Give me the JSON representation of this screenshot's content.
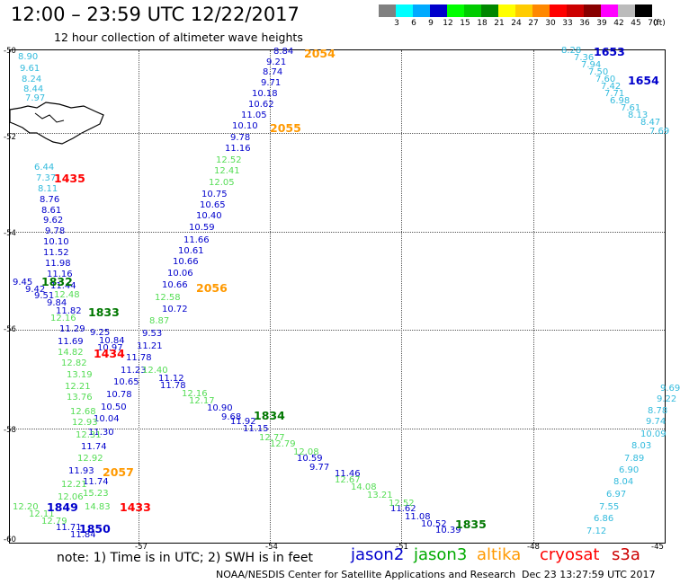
{
  "header": {
    "title": "12:00 – 23:59 UTC 12/22/2017",
    "subtitle": "12 hour collection of altimeter wave heights"
  },
  "scale": {
    "colors": [
      "#808080",
      "#00ffff",
      "#00aaff",
      "#0000cc",
      "#00ff00",
      "#00cc00",
      "#008800",
      "#ffff00",
      "#ffcc00",
      "#ff8800",
      "#ff0000",
      "#cc0000",
      "#880000",
      "#ff00ff",
      "#bbbbbb",
      "#000000"
    ],
    "labels": [
      "3",
      "6",
      "9",
      "12",
      "15",
      "18",
      "21",
      "24",
      "27",
      "30",
      "33",
      "36",
      "39",
      "42",
      "45",
      "70"
    ],
    "unit": "(ft)"
  },
  "axes": {
    "lat_labels": [
      "-50",
      "-52",
      "-54",
      "-56",
      "-58",
      "-60"
    ],
    "lon_labels": [
      "-57",
      "-54",
      "-51",
      "-48",
      "-45"
    ]
  },
  "satellites": {
    "jason2": {
      "name": "jason2",
      "color": "#0000cc"
    },
    "jason3": {
      "name": "jason3",
      "color": "#00aa00"
    },
    "altika": {
      "name": "altika",
      "color": "#ff9900"
    },
    "cryosat": {
      "name": "cryosat",
      "color": "#ff0000"
    },
    "s3a": {
      "name": "s3a",
      "color": "#cc0000"
    }
  },
  "time_labels": [
    {
      "text": "2054",
      "sat": "altika"
    },
    {
      "text": "2055",
      "sat": "altika"
    },
    {
      "text": "2056",
      "sat": "altika"
    },
    {
      "text": "2057",
      "sat": "altika"
    },
    {
      "text": "1435",
      "sat": "cryosat"
    },
    {
      "text": "1434",
      "sat": "cryosat"
    },
    {
      "text": "1433",
      "sat": "cryosat"
    },
    {
      "text": "1832",
      "sat": "jason3"
    },
    {
      "text": "1833",
      "sat": "jason3"
    },
    {
      "text": "1834",
      "sat": "jason3"
    },
    {
      "text": "1835",
      "sat": "jason3"
    },
    {
      "text": "1849",
      "sat": "jason2"
    },
    {
      "text": "1850",
      "sat": "jason2"
    },
    {
      "text": "1653",
      "sat": "jason2"
    },
    {
      "text": "1654",
      "sat": "jason2"
    }
  ],
  "tracks": {
    "west": [
      "8.90",
      "9.61",
      "8.24",
      "8.44",
      "7.97",
      "6.44",
      "7.37",
      "8.11",
      "8.76",
      "8.61",
      "9.62",
      "9.78",
      "10.10",
      "11.52",
      "11.98",
      "11.16",
      "9.45",
      "9.42",
      "9.51",
      "9.84",
      "11.44",
      "11.82",
      "11.29",
      "11.69",
      "10.84",
      "9.25",
      "10.97",
      "11.21",
      "11.78",
      "11.23",
      "10.65",
      "10.78",
      "10.50",
      "10.04",
      "11.30",
      "11.74",
      "11.93",
      "11.74",
      "11.71",
      "11.84"
    ],
    "west_green": [
      "12.48",
      "12.16",
      "14.82",
      "12.82",
      "13.19",
      "12.21",
      "13.76",
      "12.68",
      "12.93",
      "12.31",
      "12.92",
      "12.21",
      "12.06",
      "15.23",
      "14.83",
      "12.20",
      "12.11",
      "12.79"
    ],
    "altika": [
      "8.84",
      "9.21",
      "8.74",
      "9.71",
      "10.18",
      "10.62",
      "11.05",
      "10.10",
      "9.78",
      "11.16",
      "11.66",
      "10.61",
      "10.66",
      "10.06",
      "10.66",
      "10.72",
      "9.53",
      "10.75",
      "10.65",
      "10.40",
      "10.59"
    ],
    "altika_green": [
      "12.52",
      "12.41",
      "12.05",
      "12.58",
      "8.87"
    ],
    "diag": [
      "11.12",
      "11.78",
      "10.90",
      "9.68",
      "11.92",
      "11.15",
      "10.59",
      "9.77",
      "11.46",
      "11.62",
      "11.08",
      "10.52",
      "10.39"
    ],
    "diag_green": [
      "12.40",
      "12.16",
      "12.17",
      "12.77",
      "12.79",
      "12.08",
      "12.67",
      "14.08",
      "13.21",
      "12.52"
    ],
    "northeast": [
      "8.28",
      "7.36",
      "7.94",
      "7.50",
      "7.60",
      "7.42",
      "7.71",
      "6.98",
      "7.61",
      "8.13",
      "8.47",
      "7.69"
    ],
    "east": [
      "9.69",
      "9.22",
      "8.78",
      "9.74",
      "10.09",
      "8.03",
      "7.89",
      "6.90",
      "8.04",
      "6.97",
      "7.55",
      "6.86",
      "7.12"
    ]
  },
  "footer": {
    "note": "note: 1) Time is in UTC; 2) SWH is in feet",
    "credit": "NOAA/NESDIS Center for Satellite Applications and Research",
    "timestamp": "Dec 23 13:27:59 UTC 2017"
  }
}
